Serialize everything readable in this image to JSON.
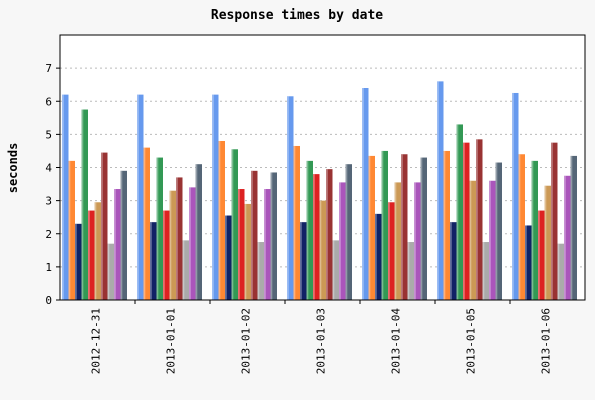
{
  "chart_data": {
    "type": "bar",
    "title": "Response times by date",
    "xlabel": "",
    "ylabel": "seconds",
    "ylim": [
      0,
      8
    ],
    "yticks": [
      0,
      1,
      2,
      3,
      4,
      5,
      6,
      7
    ],
    "grid": true,
    "legend": "none",
    "categories": [
      "2012-12-31",
      "2013-01-01",
      "2013-01-02",
      "2013-01-03",
      "2013-01-04",
      "2013-01-05",
      "2013-01-06"
    ],
    "series": [
      {
        "color": "#6699ee",
        "values": [
          6.2,
          6.2,
          6.2,
          6.15,
          6.4,
          6.6,
          6.25
        ]
      },
      {
        "color": "#ff8833",
        "values": [
          4.2,
          4.6,
          4.8,
          4.65,
          4.35,
          4.5,
          4.4
        ]
      },
      {
        "color": "#112266",
        "values": [
          2.3,
          2.35,
          2.55,
          2.35,
          2.6,
          2.35,
          2.25
        ]
      },
      {
        "color": "#339955",
        "values": [
          5.75,
          4.3,
          4.55,
          4.2,
          4.5,
          5.3,
          4.2
        ]
      },
      {
        "color": "#dd2222",
        "values": [
          2.7,
          2.7,
          3.35,
          3.8,
          2.95,
          4.75,
          2.7
        ]
      },
      {
        "color": "#cc9955",
        "values": [
          2.95,
          3.3,
          2.9,
          3.0,
          3.55,
          3.6,
          3.45
        ]
      },
      {
        "color": "#993333",
        "values": [
          4.45,
          3.7,
          3.9,
          3.95,
          4.4,
          4.85,
          4.75
        ]
      },
      {
        "color": "#aaaaaa",
        "values": [
          1.7,
          1.8,
          1.75,
          1.8,
          1.75,
          1.75,
          1.7
        ]
      },
      {
        "color": "#aa55bb",
        "values": [
          3.35,
          3.4,
          3.35,
          3.55,
          3.55,
          3.6,
          3.75
        ]
      },
      {
        "color": "#556677",
        "values": [
          3.9,
          4.1,
          3.85,
          4.1,
          4.3,
          4.15,
          4.35
        ]
      }
    ]
  }
}
